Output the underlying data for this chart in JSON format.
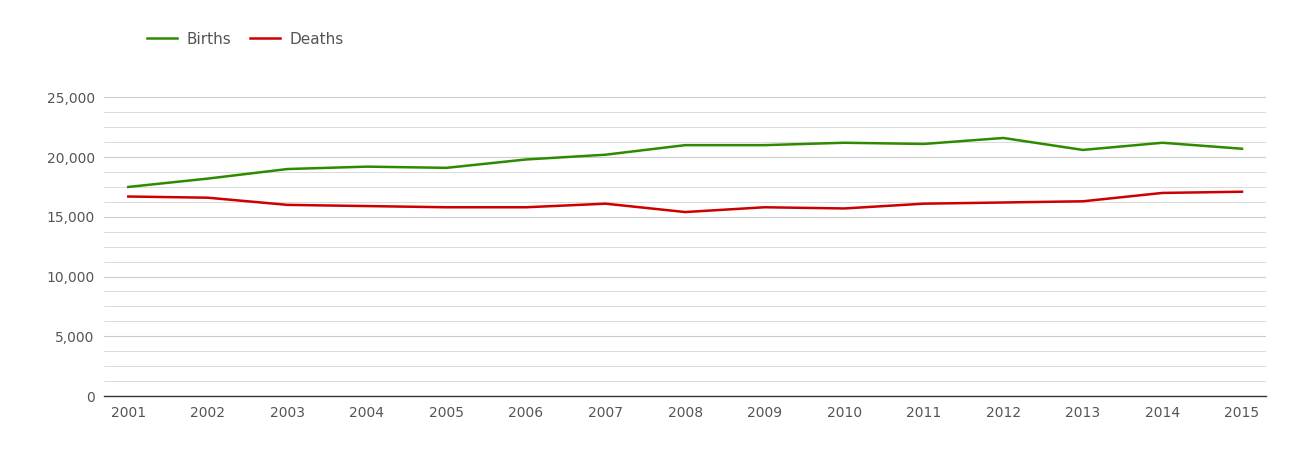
{
  "years": [
    2001,
    2002,
    2003,
    2004,
    2005,
    2006,
    2007,
    2008,
    2009,
    2010,
    2011,
    2012,
    2013,
    2014,
    2015
  ],
  "births": [
    17500,
    18200,
    19000,
    19200,
    19100,
    19800,
    20200,
    21000,
    21000,
    21200,
    21100,
    21600,
    20600,
    21200,
    20700
  ],
  "deaths": [
    16700,
    16600,
    16000,
    15900,
    15800,
    15800,
    16100,
    15400,
    15800,
    15700,
    16100,
    16200,
    16300,
    17000,
    17100
  ],
  "births_color": "#2e8b00",
  "deaths_color": "#cc0000",
  "background_color": "#ffffff",
  "grid_color": "#cccccc",
  "line_width": 1.8,
  "ylim": [
    0,
    27500
  ],
  "yticks_major": [
    0,
    5000,
    10000,
    15000,
    20000,
    25000
  ],
  "yticks_minor": [
    1250,
    2500,
    3750,
    6250,
    7500,
    8750,
    11250,
    12500,
    13750,
    16250,
    17500,
    18750,
    21250,
    22500,
    23750
  ],
  "legend_labels": [
    "Births",
    "Deaths"
  ],
  "tick_color": "#555555",
  "axis_color": "#333333",
  "tick_fontsize": 10,
  "legend_fontsize": 11
}
